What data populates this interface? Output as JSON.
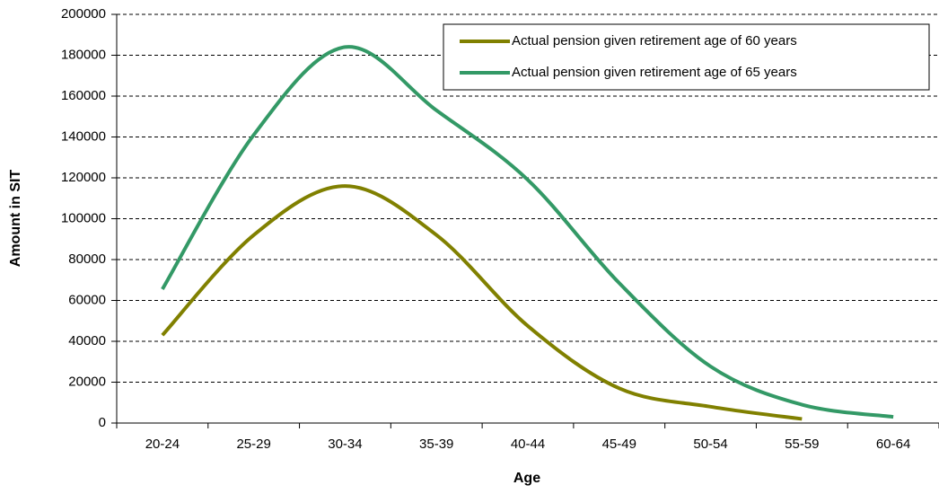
{
  "chart_data": {
    "type": "line",
    "x_label": "Age",
    "y_label": "Amount in SIT",
    "categories": [
      "20-24",
      "25-29",
      "30-34",
      "35-39",
      "40-44",
      "45-49",
      "50-54",
      "55-59",
      "60-64"
    ],
    "series": [
      {
        "name": "Actual pension given retirement age of 60 years",
        "color": "#808000",
        "values": [
          43000,
          92000,
          116000,
          92000,
          47500,
          17000,
          8000,
          2000,
          null
        ]
      },
      {
        "name": "Actual pension given retirement age of 65 years",
        "color": "#339966",
        "values": [
          65500,
          141000,
          184000,
          153000,
          119000,
          68500,
          27700,
          9000,
          3000
        ]
      }
    ],
    "ylim": [
      0,
      200000
    ],
    "yticks": [
      0,
      20000,
      40000,
      60000,
      80000,
      100000,
      120000,
      140000,
      160000,
      180000,
      200000
    ],
    "grid": true,
    "legend": "upper right",
    "smooth": true
  }
}
